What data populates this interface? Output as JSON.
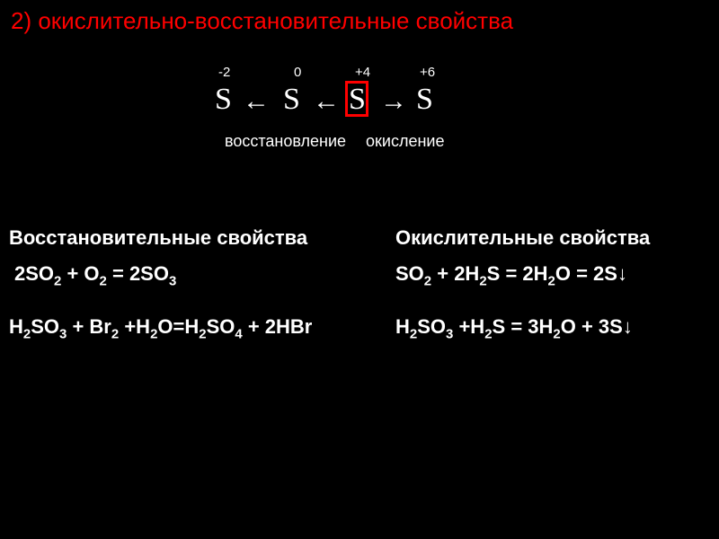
{
  "header": "2)  окислительно-восстановительные свойства",
  "diagram": {
    "ox_labels": [
      "-2",
      "0",
      "+4",
      "+6"
    ],
    "symbols": [
      "S",
      "←",
      "S",
      "←",
      "S",
      "→",
      "S"
    ],
    "caption_left": "восстановление",
    "caption_right": "окисление",
    "box_color": "#ff0000",
    "header_color": "#ff0000"
  },
  "left": {
    "title": "Восстановительные свойства",
    "eq1": "2SO₂ + O₂ = 2SO₃",
    "eq2": "H₂SO₃ + Br₂ +H₂O=H₂SO₄ + 2HBr"
  },
  "right": {
    "title": "Окислительные свойства",
    "eq1": "SO₂ + 2H₂S = 2H₂O = 2S↓",
    "eq2": "H₂SO₃ +H₂S = 3H₂O + 3S↓"
  },
  "colors": {
    "background": "#000000",
    "text": "#ffffff",
    "accent": "#ff0000"
  }
}
